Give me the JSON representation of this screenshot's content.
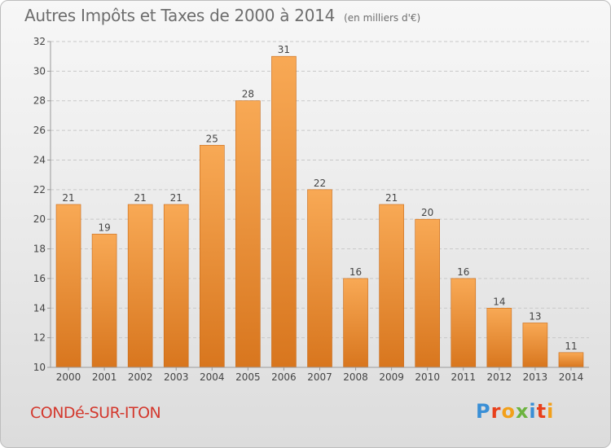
{
  "header": {
    "title": "Autres Impôts et Taxes de 2000 à 2014",
    "unit": "(en milliers d'€)"
  },
  "footer": {
    "commune": "CONDé-SUR-ITON",
    "brand": "Proxiti",
    "brand_colors": [
      "#3a8fd6",
      "#e8401c",
      "#f2a01a",
      "#6cb33f",
      "#3a8fd6",
      "#e8401c",
      "#f2a01a"
    ]
  },
  "colors": {
    "bar_top": "#f8a955",
    "bar_bottom": "#d8761e",
    "bar_edge": "#c86a18",
    "grid": "#c8c8c8",
    "axis": "#9a9a9a",
    "text": "#444444"
  },
  "chart_data": {
    "type": "bar",
    "categories": [
      "2000",
      "2001",
      "2002",
      "2003",
      "2004",
      "2005",
      "2006",
      "2007",
      "2008",
      "2009",
      "2010",
      "2011",
      "2012",
      "2013",
      "2014"
    ],
    "values": [
      21,
      19,
      21,
      21,
      25,
      28,
      31,
      22,
      16,
      21,
      20,
      16,
      14,
      13,
      11
    ],
    "ylim": [
      10,
      32
    ],
    "yticks": [
      10,
      12,
      14,
      16,
      18,
      20,
      22,
      24,
      26,
      28,
      30,
      32
    ],
    "grid": "horizontal dashed",
    "data_labels": true
  }
}
